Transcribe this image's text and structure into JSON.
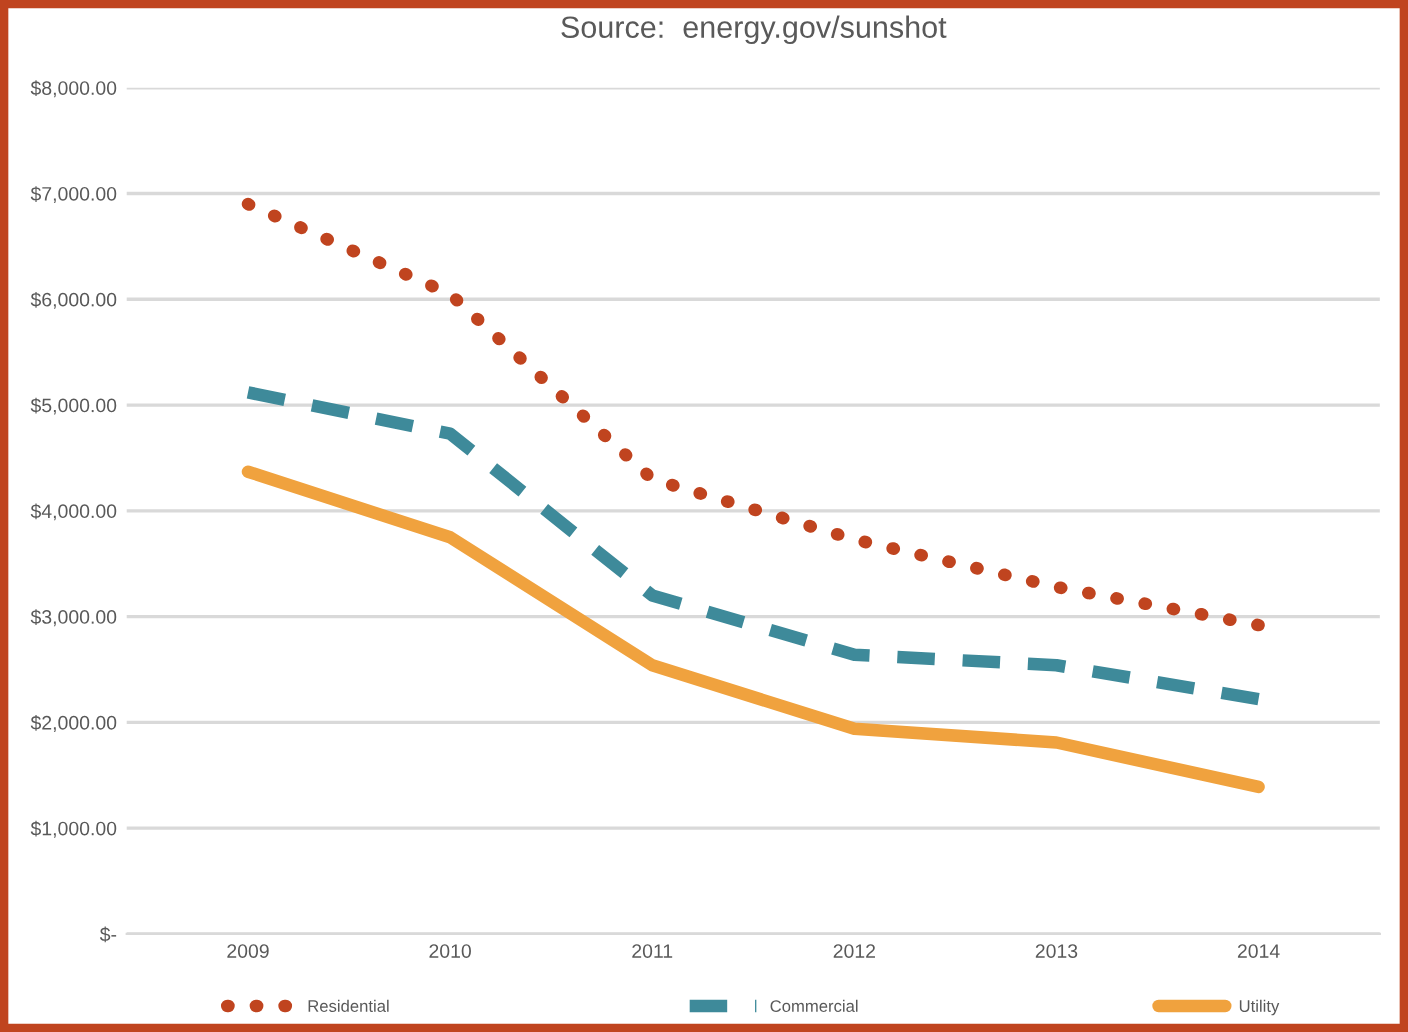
{
  "chart_data": {
    "type": "line",
    "title": "Source:  energy.gov/sunshot",
    "categories": [
      "2009",
      "2010",
      "2011",
      "2012",
      "2013",
      "2014"
    ],
    "series": [
      {
        "name": "Residential",
        "color": "#c0441f",
        "values": [
          6900,
          6050,
          4300,
          3730,
          3280,
          2920
        ],
        "line_style": "dotted"
      },
      {
        "name": "Commercial",
        "color": "#3e8a9a",
        "values": [
          5120,
          4730,
          3200,
          2640,
          2540,
          2220
        ],
        "line_style": "dashed"
      },
      {
        "name": "Utility",
        "color": "#f0a23e",
        "values": [
          4370,
          3750,
          2540,
          1940,
          1810,
          1390
        ],
        "line_style": "solid"
      }
    ],
    "ylim": [
      0,
      8000
    ],
    "yticks": [
      {
        "value": 0,
        "label": "$-"
      },
      {
        "value": 1000,
        "label": "$1,000.00"
      },
      {
        "value": 2000,
        "label": "$2,000.00"
      },
      {
        "value": 3000,
        "label": "$3,000.00"
      },
      {
        "value": 4000,
        "label": "$4,000.00"
      },
      {
        "value": 5000,
        "label": "$5,000.00"
      },
      {
        "value": 6000,
        "label": "$6,000.00"
      },
      {
        "value": 7000,
        "label": "$7,000.00"
      },
      {
        "value": 8000,
        "label": "$8,000.00"
      }
    ],
    "grid": "y",
    "legend": "bottom",
    "marker": "none"
  }
}
